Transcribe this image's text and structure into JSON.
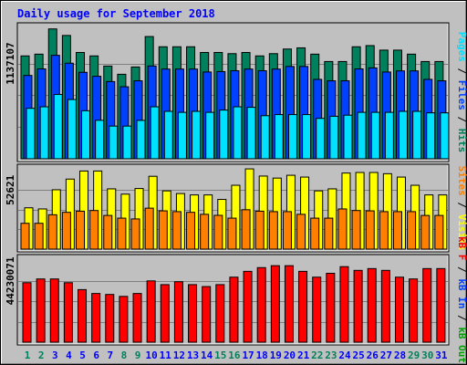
{
  "chart_data": {
    "type": "bar",
    "title": "Daily usage for September 2018",
    "days": [
      "1",
      "2",
      "3",
      "4",
      "5",
      "6",
      "7",
      "8",
      "9",
      "10",
      "11",
      "12",
      "13",
      "14",
      "15",
      "16",
      "17",
      "18",
      "19",
      "20",
      "21",
      "22",
      "23",
      "24",
      "25",
      "26",
      "27",
      "28",
      "29",
      "30",
      "31"
    ],
    "weekend_days": [
      1,
      2,
      8,
      9,
      15,
      16,
      22,
      23,
      29,
      30
    ],
    "panels": [
      {
        "id": "hits_files_pages",
        "tick_value": "1137107",
        "tick_at": 1137107,
        "ymax": 1600000,
        "grid_values": [
          1137107,
          758071,
          379036
        ],
        "series": [
          {
            "name": "Hits",
            "color": "#00805c",
            "values": [
              1227000,
              1248000,
              1549000,
              1471000,
              1268000,
              1227000,
              1106000,
              1008000,
              1095000,
              1458000,
              1336000,
              1336000,
              1336000,
              1268000,
              1268000,
              1254000,
              1268000,
              1227000,
              1254000,
              1309000,
              1323000,
              1248000,
              1160000,
              1160000,
              1336000,
              1350000,
              1296000,
              1296000,
              1248000,
              1160000,
              1160000
            ]
          },
          {
            "name": "Files",
            "color": "#0040ff",
            "values": [
              994000,
              1072000,
              1234000,
              1140000,
              1031000,
              984000,
              921000,
              859000,
              930000,
              1107000,
              1070000,
              1070000,
              1070000,
              1035000,
              1040000,
              1050000,
              1070000,
              1050000,
              1070000,
              1101000,
              1101000,
              947000,
              930000,
              930000,
              1072000,
              1084000,
              1035000,
              1048000,
              1048000,
              947000,
              930000
            ]
          },
          {
            "name": "Pages",
            "color": "#00e0ff",
            "values": [
              602000,
              620000,
              767000,
              707000,
              573000,
              459000,
              390000,
              390000,
              458000,
              620000,
              566000,
              554000,
              566000,
              554000,
              581000,
              620000,
              614000,
              514000,
              527000,
              527000,
              527000,
              482000,
              507000,
              520000,
              554000,
              554000,
              554000,
              566000,
              566000,
              548000,
              548000
            ]
          }
        ]
      },
      {
        "id": "visits_sites",
        "tick_value": "52621",
        "tick_at": 52621,
        "ymax": 74000,
        "grid_values": [
          52621,
          35081,
          17540
        ],
        "series": [
          {
            "name": "Visits",
            "color": "#ffff00",
            "values": [
              36800,
              35800,
              52900,
              62400,
              69600,
              69600,
              53700,
              49000,
              54000,
              64900,
              51900,
              49500,
              48300,
              48300,
              44300,
              56900,
              71500,
              65100,
              63300,
              65800,
              64200,
              51900,
              53700,
              67800,
              68300,
              68300,
              67200,
              64200,
              56900,
              48300,
              48300
            ]
          },
          {
            "name": "Sites",
            "color": "#ff8000",
            "values": [
              23000,
              23000,
              30600,
              32800,
              33800,
              34400,
              30000,
              27600,
              26900,
              36500,
              34100,
              33400,
              32800,
              31000,
              30100,
              27600,
              35100,
              33800,
              33400,
              33400,
              31000,
              27600,
              27600,
              35800,
              34400,
              34100,
              33400,
              33400,
              33400,
              30000,
              30000
            ]
          }
        ]
      },
      {
        "id": "kb_f",
        "tick_value": "44230071",
        "tick_at": 44230071,
        "ymax": 62000000,
        "grid_values": [
          44230071,
          29486714,
          14743357
        ],
        "series": [
          {
            "name": "KB F",
            "color": "#ff0000",
            "values": [
              43000000,
              45700000,
              45700000,
              43000000,
              38000000,
              35200000,
              34500000,
              33100000,
              35200000,
              44300000,
              41600000,
              43700000,
              41600000,
              40200000,
              41600000,
              47000000,
              51200000,
              53900000,
              55300000,
              55300000,
              51200000,
              47000000,
              49800000,
              54600000,
              51900000,
              53200000,
              51900000,
              47000000,
              45700000,
              53200000,
              53200000
            ]
          }
        ]
      }
    ],
    "right_labels": [
      {
        "panel": "hits_files_pages",
        "parts": [
          {
            "text": "Pages",
            "color": "#00e0ff"
          },
          {
            "text": " / ",
            "color": "#000000"
          },
          {
            "text": "Files",
            "color": "#0040ff"
          },
          {
            "text": " / ",
            "color": "#000000"
          },
          {
            "text": "Hits",
            "color": "#00805c"
          }
        ]
      },
      {
        "panel": "visits_sites",
        "parts": [
          {
            "text": "Sites",
            "color": "#ff8000"
          },
          {
            "text": " / ",
            "color": "#000000"
          },
          {
            "text": "Visits",
            "color": "#ffff00"
          }
        ]
      },
      {
        "panel": "kb_f",
        "parts": [
          {
            "text": "kB F",
            "color": "#ff0000"
          },
          {
            "text": " / ",
            "color": "#000000"
          },
          {
            "text": "kB In",
            "color": "#0040ff"
          },
          {
            "text": " / ",
            "color": "#000000"
          },
          {
            "text": "kB Out",
            "color": "#00a000"
          }
        ]
      }
    ],
    "colors": {
      "background": "#c0c0c0",
      "title": "#0000ff",
      "weekday_label": "#0000ff",
      "weekend_label": "#00805c",
      "grid": "#808080"
    }
  }
}
